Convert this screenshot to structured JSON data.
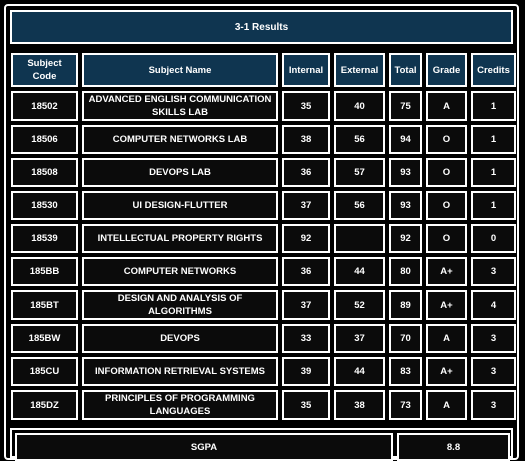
{
  "header": {
    "title": "3-1 Results"
  },
  "columns": [
    "Subject Code",
    "Subject Name",
    "Internal",
    "External",
    "Total",
    "Grade",
    "Credits"
  ],
  "rows": [
    {
      "code": "18502",
      "name": "ADVANCED ENGLISH COMMUNICATION SKILLS LAB",
      "internal": "35",
      "external": "40",
      "total": "75",
      "grade": "A",
      "credits": "1"
    },
    {
      "code": "18506",
      "name": "COMPUTER NETWORKS LAB",
      "internal": "38",
      "external": "56",
      "total": "94",
      "grade": "O",
      "credits": "1"
    },
    {
      "code": "18508",
      "name": "DEVOPS LAB",
      "internal": "36",
      "external": "57",
      "total": "93",
      "grade": "O",
      "credits": "1"
    },
    {
      "code": "18530",
      "name": "UI DESIGN-FLUTTER",
      "internal": "37",
      "external": "56",
      "total": "93",
      "grade": "O",
      "credits": "1"
    },
    {
      "code": "18539",
      "name": "INTELLECTUAL PROPERTY RIGHTS",
      "internal": "92",
      "external": "",
      "total": "92",
      "grade": "O",
      "credits": "0"
    },
    {
      "code": "185BB",
      "name": "COMPUTER NETWORKS",
      "internal": "36",
      "external": "44",
      "total": "80",
      "grade": "A+",
      "credits": "3"
    },
    {
      "code": "185BT",
      "name": "DESIGN AND ANALYSIS OF ALGORITHMS",
      "internal": "37",
      "external": "52",
      "total": "89",
      "grade": "A+",
      "credits": "4"
    },
    {
      "code": "185BW",
      "name": "DEVOPS",
      "internal": "33",
      "external": "37",
      "total": "70",
      "grade": "A",
      "credits": "3"
    },
    {
      "code": "185CU",
      "name": "INFORMATION RETRIEVAL SYSTEMS",
      "internal": "39",
      "external": "44",
      "total": "83",
      "grade": "A+",
      "credits": "3"
    },
    {
      "code": "185DZ",
      "name": "PRINCIPLES OF PROGRAMMING LANGUAGES",
      "internal": "35",
      "external": "38",
      "total": "73",
      "grade": "A",
      "credits": "3"
    }
  ],
  "footer": {
    "label": "SGPA",
    "value": "8.8"
  },
  "colors": {
    "header_bg": "#0f3550",
    "cell_bg": "#0b0b0b",
    "border": "#ffffff",
    "page_bg": "#000000"
  }
}
